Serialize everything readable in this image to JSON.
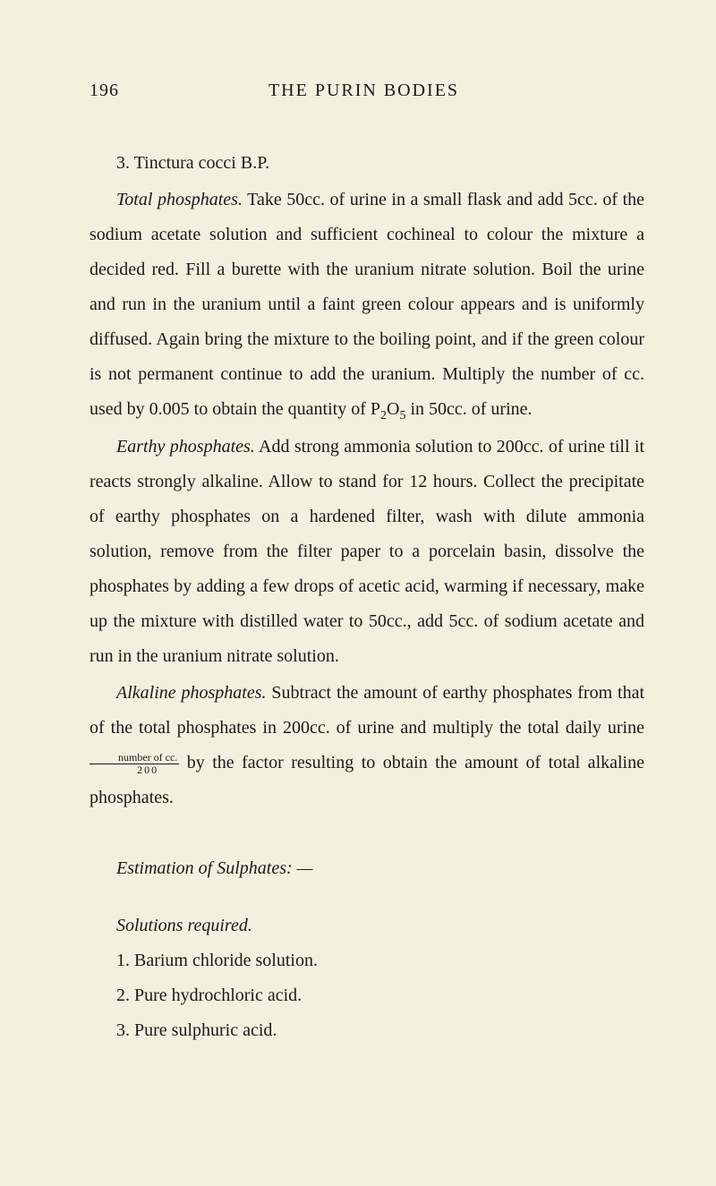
{
  "page_number": "196",
  "header_title": "THE PURIN BODIES",
  "para1_line1": "3. Tinctura cocci B.P.",
  "para2_italic": "Total phosphates.",
  "para2_text": " Take 50cc. of urine in a small flask and add 5cc. of the sodium acetate solution and sufficient cochineal to colour the mixture a decided red. Fill a burette with the uranium nitrate solution. Boil the urine and run in the uranium until a faint green colour appears and is uniformly diffused. Again bring the mixture to the boiling point, and if the green colour is not permanent continue to add the uranium. Multiply the number of cc. used by 0.005 to obtain the quantity of P",
  "para2_sub1": "2",
  "para2_mid": "O",
  "para2_sub2": "5",
  "para2_end": " in 50cc. of urine.",
  "para3_italic": "Earthy phosphates.",
  "para3_text": " Add strong ammonia solution to 200cc. of urine till it reacts strongly alkaline. Allow to stand for 12 hours. Collect the precipitate of earthy phosphates on a hardened filter, wash with dilute ammonia solution, remove from the filter paper to a porcelain basin, dissolve the phosphates by adding a few drops of acetic acid, warming if necessary, make up the mixture with distilled water to 50cc., add 5cc. of sodium acetate and run in the uranium nitrate solution.",
  "para4_italic": "Alkaline phosphates.",
  "para4_text1": " Subtract the amount of earthy phosphates from that of the total phosphates in 200cc. of urine and multiply the total daily urine ",
  "fraction_top": "number of cc.",
  "fraction_bot": "200",
  "para4_text2": " by the factor resulting to obtain the amount of total alkaline phosphates.",
  "section_heading": "Estimation of Sulphates: —",
  "solutions_italic": "Solutions required.",
  "list1": "1. Barium chloride solution.",
  "list2": "2. Pure hydrochloric acid.",
  "list3": "3. Pure sulphuric acid."
}
